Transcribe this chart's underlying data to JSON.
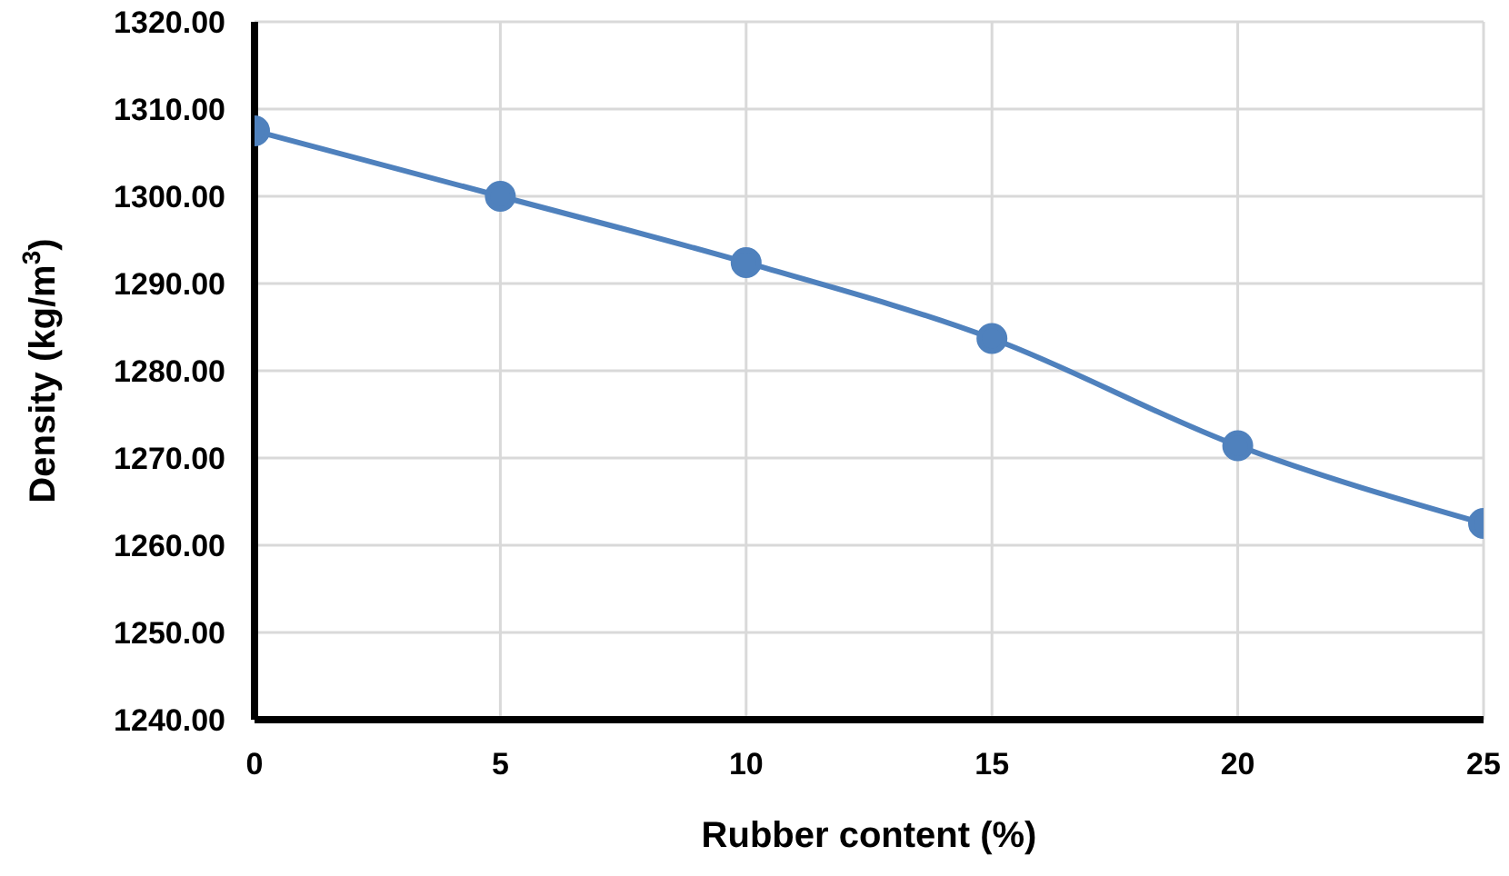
{
  "chart_data": {
    "type": "line",
    "xlabel": "Rubber content (%)",
    "ylabel": "Density (kg/m$^{3}$)",
    "x": [
      0,
      5,
      10,
      15,
      20,
      25
    ],
    "series": [
      {
        "color": "#4f81bd",
        "values": [
          1307.5,
          1300,
          1292.4,
          1283.7,
          1271.4,
          1262.5
        ]
      }
    ],
    "xlim": [
      0,
      25
    ],
    "xticks": [
      0,
      5,
      10,
      15,
      20,
      25
    ],
    "ylim": [
      1240,
      1320
    ],
    "yticks": [
      {
        "value": 1240,
        "label": "1240.00"
      },
      {
        "value": 1250,
        "label": "1250.00"
      },
      {
        "value": 1260,
        "label": "1260.00"
      },
      {
        "value": 1270,
        "label": "1270.00"
      },
      {
        "value": 1280,
        "label": "1280.00"
      },
      {
        "value": 1290,
        "label": "1290.00"
      },
      {
        "value": 1300,
        "label": "1300.00"
      },
      {
        "value": 1310,
        "label": "1310.00"
      },
      {
        "value": 1320,
        "label": "1320.00"
      }
    ],
    "grid": true,
    "marker": "circle",
    "line_style": "solid",
    "legend": false
  }
}
